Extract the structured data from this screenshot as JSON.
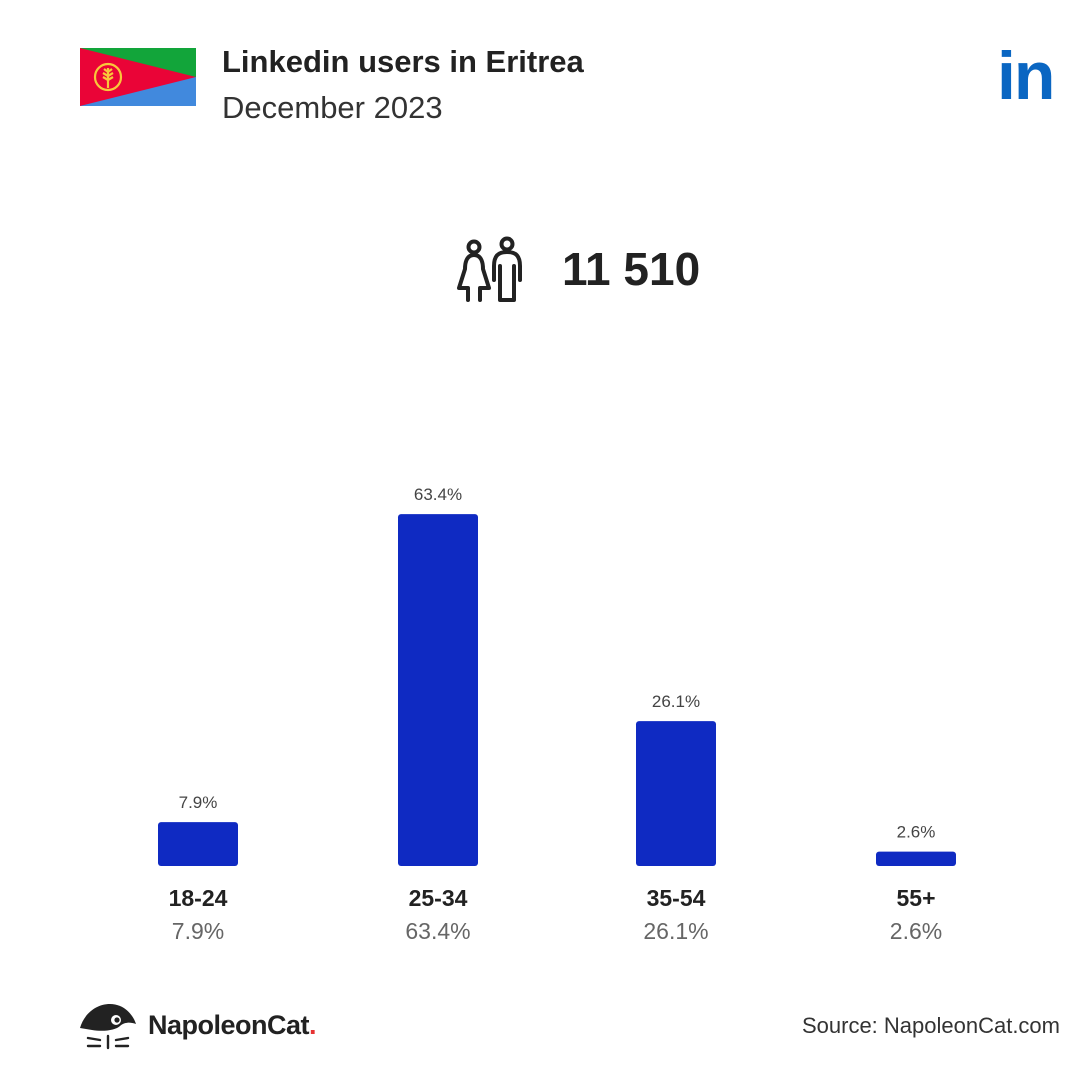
{
  "header": {
    "title": "Linkedin users in Eritrea",
    "subtitle": "December 2023",
    "logo_text": "in",
    "flag_icon": "eritrea-flag-icon"
  },
  "total": {
    "icon": "users-icon",
    "value": "11 510"
  },
  "chart_data": {
    "type": "bar",
    "categories": [
      "18-24",
      "25-34",
      "35-54",
      "55+"
    ],
    "values": [
      7.9,
      63.4,
      26.1,
      2.6
    ],
    "value_labels": [
      "7.9%",
      "63.4%",
      "26.1%",
      "2.6%"
    ],
    "bar_color": "#0f2ac2",
    "title": "",
    "xlabel": "",
    "ylabel": ""
  },
  "footer": {
    "brand_name": "NapoleonCat",
    "brand_dot": ".",
    "source": "Source: NapoleonCat.com"
  },
  "colors": {
    "linkedin": "#0a66c2",
    "brand_accent": "#e63232"
  }
}
